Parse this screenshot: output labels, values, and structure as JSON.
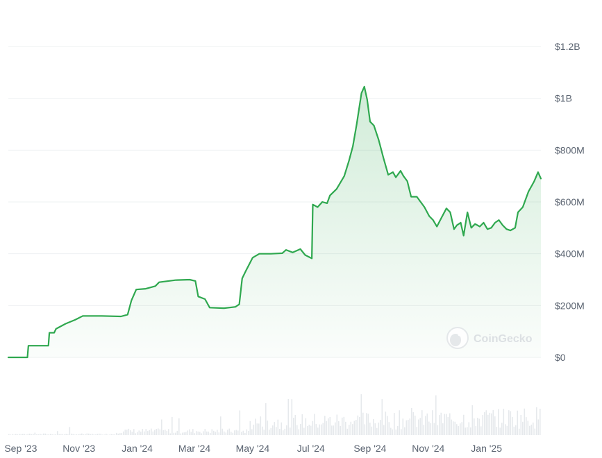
{
  "watermark": {
    "text": "CoinGecko",
    "icon": "gecko-logo-icon"
  },
  "colors": {
    "line": "#2fa84f",
    "area_top": "#2fa84f",
    "grid": "#eef0f2",
    "volume": "#e6e9ec",
    "axis_text": "#5a6370"
  },
  "chart_data": {
    "type": "area",
    "title": "",
    "xlabel": "",
    "ylabel": "",
    "ylim": [
      0,
      1200000000
    ],
    "y_ticks": [
      {
        "value": 0,
        "label": "$0"
      },
      {
        "value": 200000000,
        "label": "$200M"
      },
      {
        "value": 400000000,
        "label": "$400M"
      },
      {
        "value": 600000000,
        "label": "$600M"
      },
      {
        "value": 800000000,
        "label": "$800M"
      },
      {
        "value": 1000000000,
        "label": "$1B"
      },
      {
        "value": 1200000000,
        "label": "$1.2B"
      }
    ],
    "x_range": [
      "2023-08-19",
      "2025-02-27"
    ],
    "x_ticks": [
      {
        "date": "2023-09-01",
        "label": "Sep '23"
      },
      {
        "date": "2023-11-01",
        "label": "Nov '23"
      },
      {
        "date": "2024-01-01",
        "label": "Jan '24"
      },
      {
        "date": "2024-03-01",
        "label": "Mar '24"
      },
      {
        "date": "2024-05-01",
        "label": "May '24"
      },
      {
        "date": "2024-07-01",
        "label": "Jul '24"
      },
      {
        "date": "2024-09-01",
        "label": "Sep '24"
      },
      {
        "date": "2024-11-01",
        "label": "Nov '24"
      },
      {
        "date": "2025-01-01",
        "label": "Jan '25"
      }
    ],
    "grid": true,
    "series": [
      {
        "values": [
          [
            "2023-08-19",
            0
          ],
          [
            "2023-09-08",
            0
          ],
          [
            "2023-09-09",
            45000000
          ],
          [
            "2023-09-30",
            45000000
          ],
          [
            "2023-10-01",
            95000000
          ],
          [
            "2023-10-06",
            95000000
          ],
          [
            "2023-10-08",
            110000000
          ],
          [
            "2023-10-18",
            130000000
          ],
          [
            "2023-10-28",
            145000000
          ],
          [
            "2023-11-05",
            160000000
          ],
          [
            "2023-11-25",
            160000000
          ],
          [
            "2023-12-15",
            158000000
          ],
          [
            "2023-12-22",
            165000000
          ],
          [
            "2023-12-26",
            220000000
          ],
          [
            "2023-12-31",
            262000000
          ],
          [
            "2024-01-10",
            265000000
          ],
          [
            "2024-01-20",
            275000000
          ],
          [
            "2024-01-24",
            290000000
          ],
          [
            "2024-02-10",
            298000000
          ],
          [
            "2024-02-25",
            300000000
          ],
          [
            "2024-03-02",
            295000000
          ],
          [
            "2024-03-05",
            235000000
          ],
          [
            "2024-03-12",
            225000000
          ],
          [
            "2024-03-17",
            192000000
          ],
          [
            "2024-04-01",
            190000000
          ],
          [
            "2024-04-13",
            195000000
          ],
          [
            "2024-04-17",
            205000000
          ],
          [
            "2024-04-20",
            305000000
          ],
          [
            "2024-04-24",
            335000000
          ],
          [
            "2024-05-01",
            385000000
          ],
          [
            "2024-05-08",
            400000000
          ],
          [
            "2024-05-20",
            400000000
          ],
          [
            "2024-06-01",
            402000000
          ],
          [
            "2024-06-05",
            415000000
          ],
          [
            "2024-06-12",
            405000000
          ],
          [
            "2024-06-20",
            418000000
          ],
          [
            "2024-06-25",
            395000000
          ],
          [
            "2024-07-02",
            382000000
          ],
          [
            "2024-07-03",
            590000000
          ],
          [
            "2024-07-08",
            580000000
          ],
          [
            "2024-07-13",
            600000000
          ],
          [
            "2024-07-18",
            595000000
          ],
          [
            "2024-07-21",
            625000000
          ],
          [
            "2024-07-28",
            650000000
          ],
          [
            "2024-08-05",
            700000000
          ],
          [
            "2024-08-10",
            760000000
          ],
          [
            "2024-08-14",
            815000000
          ],
          [
            "2024-08-18",
            900000000
          ],
          [
            "2024-08-23",
            1020000000
          ],
          [
            "2024-08-26",
            1045000000
          ],
          [
            "2024-08-29",
            995000000
          ],
          [
            "2024-09-01",
            910000000
          ],
          [
            "2024-09-05",
            895000000
          ],
          [
            "2024-09-10",
            840000000
          ],
          [
            "2024-09-15",
            770000000
          ],
          [
            "2024-09-20",
            705000000
          ],
          [
            "2024-09-25",
            715000000
          ],
          [
            "2024-09-28",
            695000000
          ],
          [
            "2024-10-03",
            720000000
          ],
          [
            "2024-10-06",
            700000000
          ],
          [
            "2024-10-10",
            680000000
          ],
          [
            "2024-10-14",
            620000000
          ],
          [
            "2024-10-20",
            620000000
          ],
          [
            "2024-10-24",
            600000000
          ],
          [
            "2024-10-28",
            580000000
          ],
          [
            "2024-11-02",
            545000000
          ],
          [
            "2024-11-06",
            530000000
          ],
          [
            "2024-11-10",
            505000000
          ],
          [
            "2024-11-15",
            540000000
          ],
          [
            "2024-11-20",
            575000000
          ],
          [
            "2024-11-24",
            560000000
          ],
          [
            "2024-11-28",
            495000000
          ],
          [
            "2024-12-01",
            510000000
          ],
          [
            "2024-12-05",
            520000000
          ],
          [
            "2024-12-08",
            470000000
          ],
          [
            "2024-12-12",
            560000000
          ],
          [
            "2024-12-16",
            500000000
          ],
          [
            "2024-12-20",
            515000000
          ],
          [
            "2024-12-25",
            505000000
          ],
          [
            "2024-12-29",
            520000000
          ],
          [
            "2025-01-02",
            495000000
          ],
          [
            "2025-01-06",
            500000000
          ],
          [
            "2025-01-10",
            520000000
          ],
          [
            "2025-01-14",
            530000000
          ],
          [
            "2025-01-18",
            510000000
          ],
          [
            "2025-01-22",
            495000000
          ],
          [
            "2025-01-26",
            490000000
          ],
          [
            "2025-01-31",
            500000000
          ],
          [
            "2025-02-03",
            560000000
          ],
          [
            "2025-02-08",
            580000000
          ],
          [
            "2025-02-14",
            640000000
          ],
          [
            "2025-02-20",
            680000000
          ],
          [
            "2025-02-24",
            715000000
          ],
          [
            "2025-02-27",
            690000000
          ]
        ]
      }
    ]
  }
}
